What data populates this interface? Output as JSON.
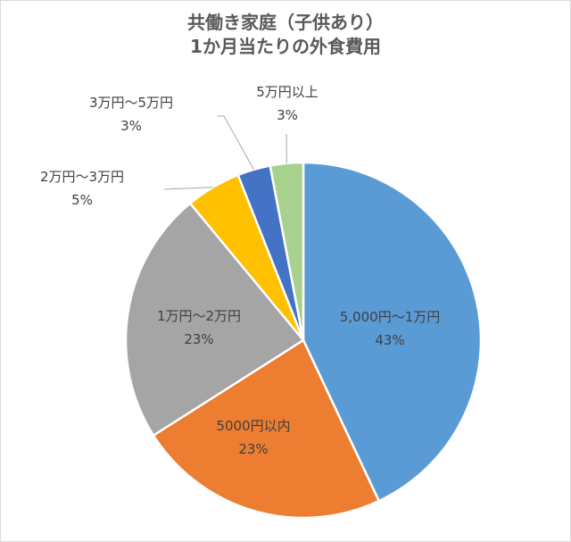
{
  "chart_data": {
    "type": "pie",
    "title_lines": [
      "共働き家庭（子供あり）",
      "1か月当たりの外食費用"
    ],
    "slices": [
      {
        "label": "5,000円～1万円",
        "percent_label": "43%",
        "value": 43,
        "color": "#5b9bd5"
      },
      {
        "label": "5000円以内",
        "percent_label": "23%",
        "value": 23,
        "color": "#ed7d31"
      },
      {
        "label": "1万円～2万円",
        "percent_label": "23%",
        "value": 23,
        "color": "#a5a5a5"
      },
      {
        "label": "2万円～3万円",
        "percent_label": "5%",
        "value": 5,
        "color": "#ffc000"
      },
      {
        "label": "3万円～5万円",
        "percent_label": "3%",
        "value": 3,
        "color": "#4472c4"
      },
      {
        "label": "5万円以上",
        "percent_label": "3%",
        "value": 3,
        "color": "#a9d18e"
      }
    ],
    "start_angle_deg": 0,
    "direction": "clockwise",
    "legend": "none"
  }
}
